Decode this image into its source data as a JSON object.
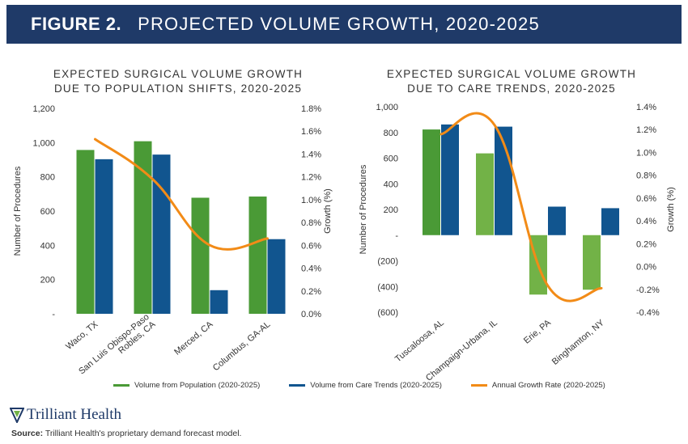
{
  "figure": {
    "label": "FIGURE 2.",
    "title": "PROJECTED VOLUME GROWTH, 2020-2025"
  },
  "colors": {
    "banner": "#1f3a68",
    "population": "#4a9a36",
    "population_light": "#72b247",
    "care": "#11558f",
    "growth": "#f28b17"
  },
  "chart_data": [
    {
      "type": "bar",
      "title_lines": [
        "EXPECTED SURGICAL VOLUME GROWTH",
        "DUE TO POPULATION SHIFTS, 2020-2025"
      ],
      "categories": [
        "Waco, TX",
        "San Luis Obispo-Paso Robles, CA",
        "Merced, CA",
        "Columbus, GA-AL"
      ],
      "category_label_lines": [
        [
          "Waco, TX"
        ],
        [
          "San Luis Obispo-Paso",
          "Robles, CA"
        ],
        [
          "Merced, CA"
        ],
        [
          "Columbus, GA-AL"
        ]
      ],
      "series": [
        {
          "name": "Volume from Population (2020-2025)",
          "values": [
            957,
            1008,
            678,
            685
          ]
        },
        {
          "name": "Volume from Care Trends (2020-2025)",
          "values": [
            903,
            930,
            138,
            436
          ]
        }
      ],
      "line_series": {
        "name": "Annual Growth Rate (2020-2025)",
        "values": [
          1.53,
          1.18,
          0.6,
          0.66
        ]
      },
      "ylabel": "Number of Procedures",
      "y2label": "Growth (%)",
      "ylim": [
        0,
        1200
      ],
      "y_ticks": [
        0,
        200,
        400,
        600,
        800,
        1000,
        1200
      ],
      "y_tick_labels": [
        "-",
        "200",
        "400",
        "600",
        "800",
        "1,000",
        "1,200"
      ],
      "y2lim": [
        0,
        1.8
      ],
      "y2_ticks": [
        0,
        0.2,
        0.4,
        0.6,
        0.8,
        1.0,
        1.2,
        1.4,
        1.6,
        1.8
      ],
      "y2_tick_labels": [
        "0.0%",
        "0.2%",
        "0.4%",
        "0.6%",
        "0.8%",
        "1.0%",
        "1.2%",
        "1.4%",
        "1.6%",
        "1.8%"
      ]
    },
    {
      "type": "bar",
      "title_lines": [
        "EXPECTED SURGICAL VOLUME GROWTH",
        "DUE TO CARE TRENDS, 2020-2025"
      ],
      "categories": [
        "Tuscaloosa, AL",
        "Champaign-Urbana, IL",
        "Erie, PA",
        "Binghamton, NY"
      ],
      "category_label_lines": [
        [
          "Tuscaloosa, AL"
        ],
        [
          "Champaign-Urbana, IL"
        ],
        [
          "Erie, PA"
        ],
        [
          "Binghamton, NY"
        ]
      ],
      "series": [
        {
          "name": "Volume from Population (2020-2025)",
          "values": [
            823,
            637,
            -463,
            -425
          ]
        },
        {
          "name": "Volume from Care Trends (2020-2025)",
          "values": [
            862,
            845,
            222,
            210
          ]
        }
      ],
      "line_series": {
        "name": "Annual Growth Rate (2020-2025)",
        "values": [
          1.16,
          1.24,
          -0.17,
          -0.19
        ]
      },
      "ylabel": "Number of Procedures",
      "y2label": "Growth (%)",
      "ylim": [
        -600,
        1000
      ],
      "y_ticks": [
        -600,
        -400,
        -200,
        0,
        200,
        400,
        600,
        800,
        1000
      ],
      "y_tick_labels": [
        "(600)",
        "(400)",
        "(200)",
        "-",
        "200",
        "400",
        "600",
        "800",
        "1,000"
      ],
      "y2lim": [
        -0.4,
        1.4
      ],
      "y2_ticks": [
        -0.4,
        -0.2,
        0,
        0.2,
        0.4,
        0.6,
        0.8,
        1.0,
        1.2,
        1.4
      ],
      "y2_tick_labels": [
        "-0.4%",
        "-0.2%",
        "0.0%",
        "0.2%",
        "0.4%",
        "0.6%",
        "0.8%",
        "1.0%",
        "1.2%",
        "1.4%"
      ]
    }
  ],
  "legend": [
    {
      "label": "Volume from Population (2020-2025)",
      "color": "#4a9a36"
    },
    {
      "label": "Volume from Care Trends (2020-2025)",
      "color": "#11558f"
    },
    {
      "label": "Annual Growth Rate (2020-2025)",
      "color": "#f28b17"
    }
  ],
  "footer": {
    "logo_text": "Trilliant Health",
    "source_label": "Source:",
    "source_text": " Trilliant Health's proprietary demand forecast model."
  }
}
